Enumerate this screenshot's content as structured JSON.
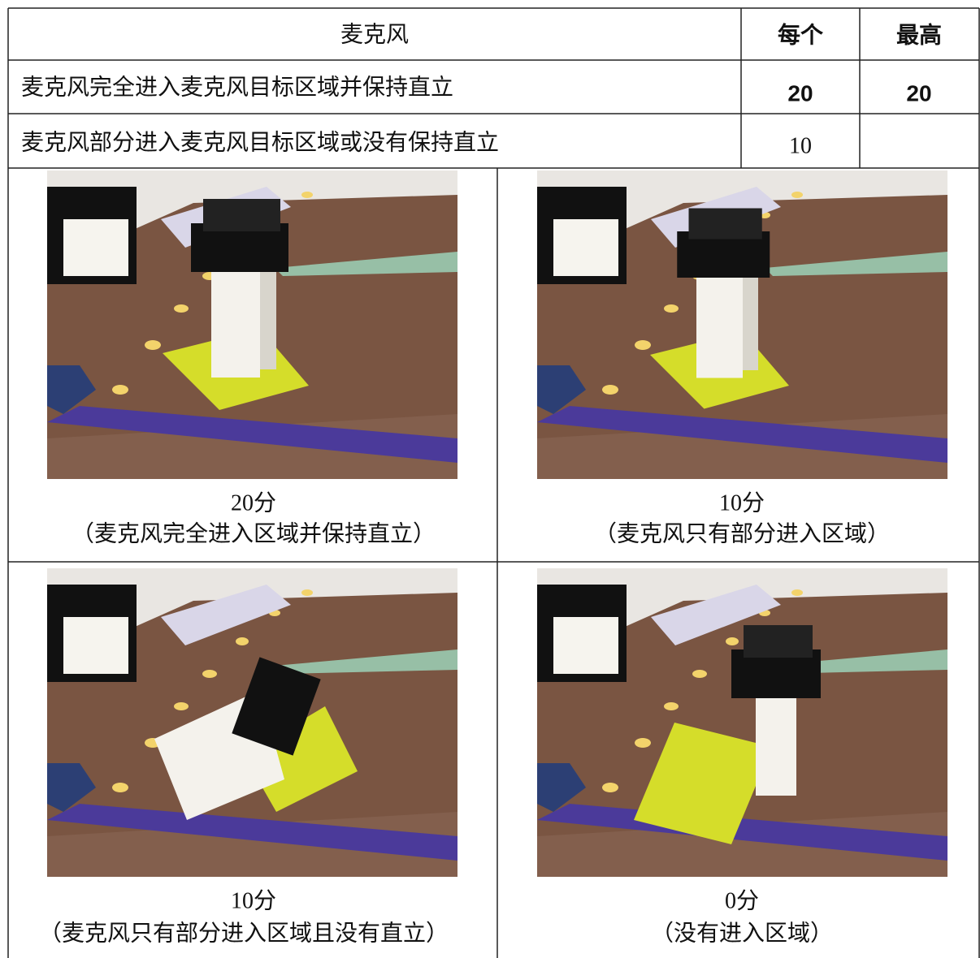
{
  "table": {
    "header": [
      "麦克风",
      "每个",
      "最高"
    ],
    "rows": [
      {
        "label": "麦克风完全进入麦克风目标区域并保持直立",
        "each": 20,
        "max": 20
      },
      {
        "label": "麦克风部分进入麦克风目标区域或没有保持直立",
        "each": 10
      }
    ]
  },
  "figures": [
    {
      "score": "20分",
      "caption": "（麦克风完全进入区域并保持直立）"
    },
    {
      "score": "10分",
      "caption": "（麦克风只有部分进入区域）"
    },
    {
      "score": "10分",
      "caption": "（麦克风只有部分进入区域且没有直立）"
    },
    {
      "score": "0分",
      "caption": "（没有进入区域）"
    }
  ]
}
